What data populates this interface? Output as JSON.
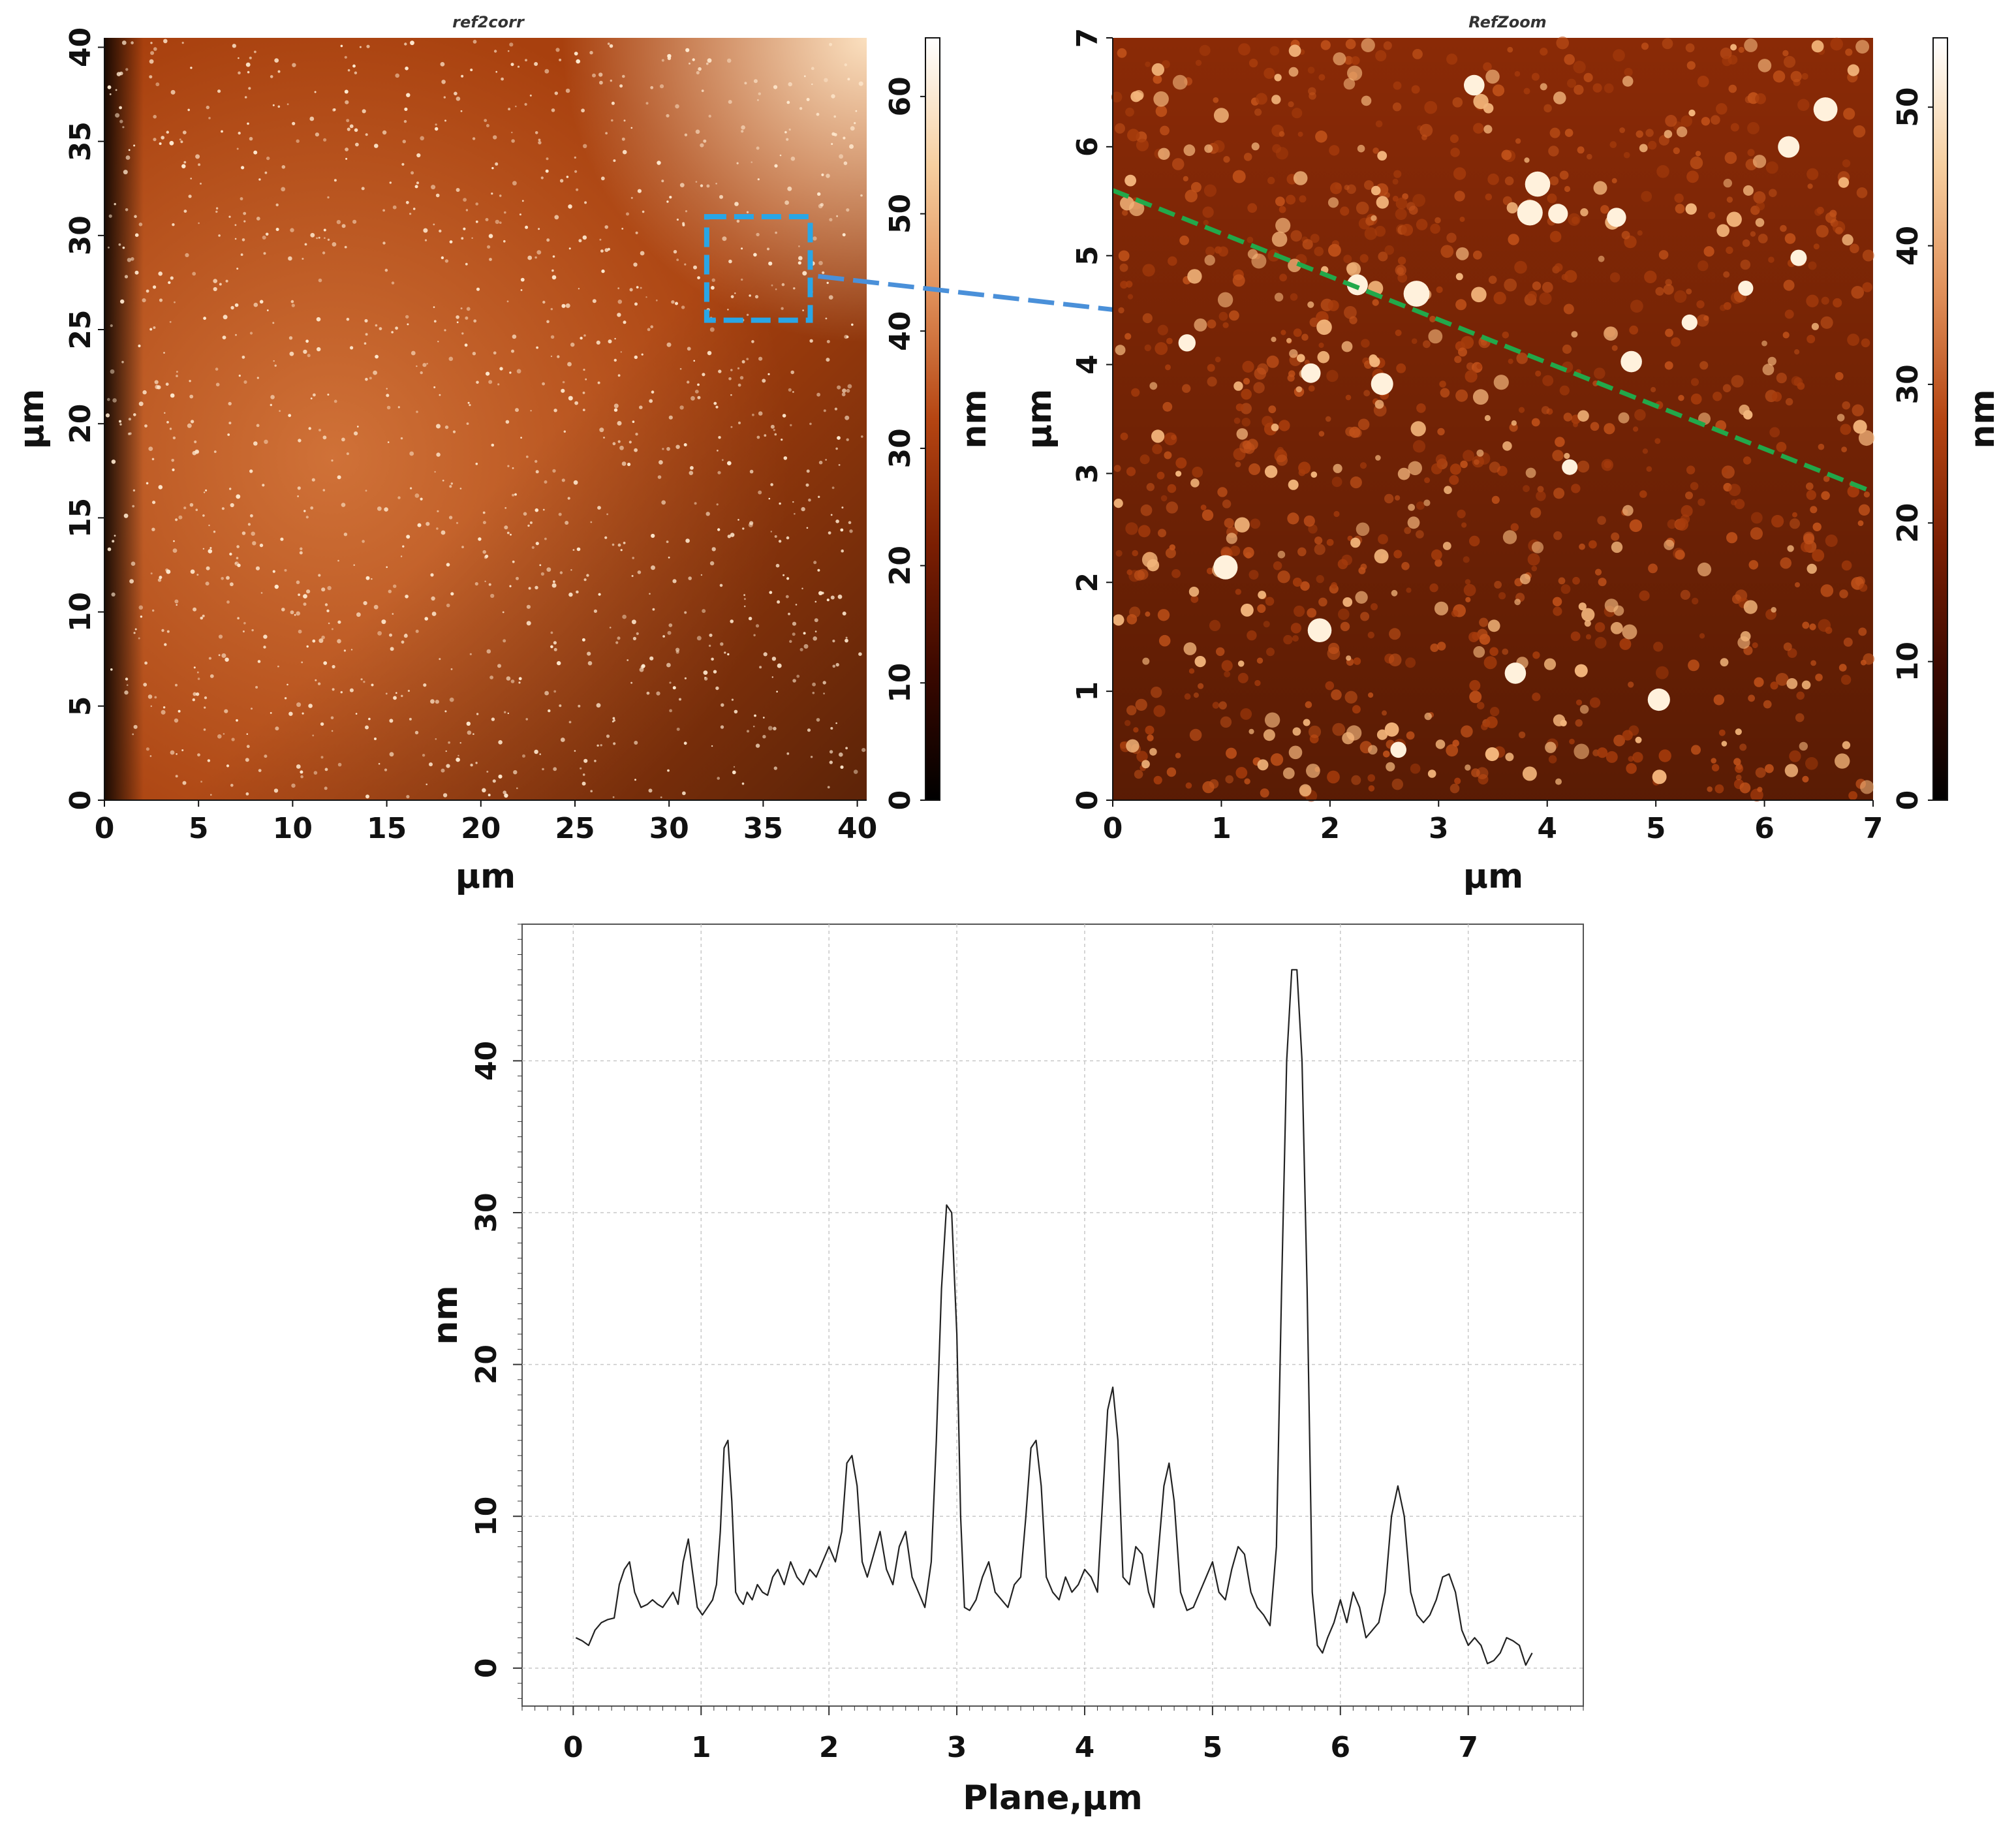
{
  "chart_data": [
    {
      "type": "heatmap",
      "title": "ref2corr",
      "xlabel": "µm",
      "ylabel": "µm",
      "xlim": [
        0,
        40.5
      ],
      "ylim": [
        0,
        40.5
      ],
      "x_ticks": [
        "0",
        "5",
        "10",
        "15",
        "20",
        "25",
        "30",
        "35",
        "40"
      ],
      "y_ticks": [
        "0",
        "5",
        "10",
        "15",
        "20",
        "25",
        "30",
        "35",
        "40"
      ],
      "colorbar": {
        "label": "nm",
        "range": [
          0,
          65
        ],
        "ticks": [
          "0",
          "10",
          "20",
          "30",
          "40",
          "50",
          "60"
        ]
      },
      "colormap": [
        "#000000",
        "#3a0800",
        "#7a1e02",
        "#b54512",
        "#e0905a",
        "#f6cfa0",
        "#ffffff"
      ],
      "zoom_region": {
        "x": [
          32,
          37.5
        ],
        "y": [
          25.5,
          31
        ],
        "color": "#29a6e6"
      },
      "arrow_color": "#4a90d9"
    },
    {
      "type": "heatmap",
      "title": "RefZoom",
      "xlabel": "µm",
      "ylabel": "µm",
      "xlim": [
        0,
        7
      ],
      "ylim": [
        0,
        7
      ],
      "x_ticks": [
        "0",
        "1",
        "2",
        "3",
        "4",
        "5",
        "6",
        "7"
      ],
      "y_ticks": [
        "0",
        "1",
        "2",
        "3",
        "4",
        "5",
        "6",
        "7"
      ],
      "colorbar": {
        "label": "nm",
        "range": [
          0,
          55
        ],
        "ticks": [
          "0",
          "10",
          "20",
          "30",
          "40",
          "50"
        ]
      },
      "colormap": [
        "#000000",
        "#3a0800",
        "#7a1e02",
        "#b54512",
        "#e0905a",
        "#f6cfa0",
        "#ffffff"
      ],
      "profile_line": {
        "start": [
          0,
          5.6
        ],
        "end": [
          6.95,
          2.85
        ],
        "color": "#22a84a"
      }
    },
    {
      "type": "line",
      "xlabel": "Plane,µm",
      "ylabel": "nm",
      "xlim": [
        -0.4,
        7.9
      ],
      "ylim": [
        -2.5,
        49
      ],
      "x_ticks": [
        0,
        1,
        2,
        3,
        4,
        5,
        6,
        7
      ],
      "y_ticks": [
        0,
        10,
        20,
        30,
        40
      ],
      "grid": true,
      "series": [
        {
          "color": "#222222",
          "x": [
            0.02,
            0.07,
            0.12,
            0.17,
            0.22,
            0.27,
            0.32,
            0.36,
            0.4,
            0.44,
            0.48,
            0.53,
            0.58,
            0.62,
            0.66,
            0.7,
            0.74,
            0.78,
            0.82,
            0.86,
            0.9,
            0.93,
            0.97,
            1.01,
            1.05,
            1.09,
            1.12,
            1.15,
            1.18,
            1.21,
            1.24,
            1.27,
            1.3,
            1.33,
            1.36,
            1.4,
            1.44,
            1.48,
            1.52,
            1.56,
            1.6,
            1.65,
            1.7,
            1.75,
            1.8,
            1.85,
            1.9,
            1.95,
            2.0,
            2.05,
            2.1,
            2.14,
            2.18,
            2.22,
            2.26,
            2.3,
            2.35,
            2.4,
            2.45,
            2.5,
            2.55,
            2.6,
            2.65,
            2.7,
            2.75,
            2.8,
            2.84,
            2.88,
            2.92,
            2.96,
            3.0,
            3.03,
            3.06,
            3.1,
            3.15,
            3.2,
            3.25,
            3.3,
            3.35,
            3.4,
            3.45,
            3.5,
            3.54,
            3.58,
            3.62,
            3.66,
            3.7,
            3.75,
            3.8,
            3.85,
            3.9,
            3.95,
            4.0,
            4.05,
            4.1,
            4.14,
            4.18,
            4.22,
            4.26,
            4.3,
            4.35,
            4.4,
            4.45,
            4.5,
            4.54,
            4.58,
            4.62,
            4.66,
            4.7,
            4.75,
            4.8,
            4.85,
            4.9,
            4.95,
            5.0,
            5.05,
            5.1,
            5.15,
            5.2,
            5.25,
            5.3,
            5.35,
            5.4,
            5.45,
            5.5,
            5.54,
            5.58,
            5.62,
            5.66,
            5.7,
            5.74,
            5.78,
            5.82,
            5.86,
            5.9,
            5.95,
            6.0,
            6.05,
            6.1,
            6.15,
            6.2,
            6.25,
            6.3,
            6.35,
            6.4,
            6.45,
            6.5,
            6.55,
            6.6,
            6.65,
            6.7,
            6.75,
            6.8,
            6.85,
            6.9,
            6.95,
            7.0,
            7.05,
            7.1,
            7.15,
            7.2,
            7.25,
            7.3,
            7.35,
            7.4,
            7.45,
            7.5
          ],
          "y": [
            2.0,
            1.8,
            1.5,
            2.5,
            3.0,
            3.2,
            3.3,
            5.5,
            6.5,
            7.0,
            5.0,
            4.0,
            4.2,
            4.5,
            4.2,
            4.0,
            4.5,
            5.0,
            4.2,
            7.0,
            8.5,
            6.5,
            4.0,
            3.5,
            4.0,
            4.5,
            5.5,
            9.0,
            14.5,
            15.0,
            11.0,
            5.0,
            4.5,
            4.2,
            5.0,
            4.5,
            5.5,
            5.0,
            4.8,
            6.0,
            6.5,
            5.5,
            7.0,
            6.0,
            5.5,
            6.5,
            6.0,
            7.0,
            8.0,
            7.0,
            9.0,
            13.5,
            14.0,
            12.0,
            7.0,
            6.0,
            7.5,
            9.0,
            6.5,
            5.5,
            8.0,
            9.0,
            6.0,
            5.0,
            4.0,
            7.0,
            15.0,
            25.0,
            30.5,
            30.0,
            22.0,
            10.0,
            4.0,
            3.8,
            4.5,
            6.0,
            7.0,
            5.0,
            4.5,
            4.0,
            5.5,
            6.0,
            10.0,
            14.5,
            15.0,
            12.0,
            6.0,
            5.0,
            4.5,
            6.0,
            5.0,
            5.5,
            6.5,
            6.0,
            5.0,
            11.0,
            17.0,
            18.5,
            15.0,
            6.0,
            5.5,
            8.0,
            7.5,
            5.0,
            4.0,
            8.0,
            12.0,
            13.5,
            11.0,
            5.0,
            3.8,
            4.0,
            5.0,
            6.0,
            7.0,
            5.0,
            4.5,
            6.5,
            8.0,
            7.5,
            5.0,
            4.0,
            3.5,
            2.8,
            8.0,
            25.0,
            40.0,
            46.0,
            46.0,
            40.0,
            25.0,
            5.0,
            1.5,
            1.0,
            2.0,
            3.0,
            4.5,
            3.0,
            5.0,
            4.0,
            2.0,
            2.5,
            3.0,
            5.0,
            10.0,
            12.0,
            10.0,
            5.0,
            3.5,
            3.0,
            3.5,
            4.5,
            6.0,
            6.2,
            5.0,
            2.5,
            1.5,
            2.0,
            1.5,
            0.3,
            0.5,
            1.0,
            2.0,
            1.8,
            1.5,
            0.2,
            1.0
          ]
        }
      ]
    }
  ]
}
